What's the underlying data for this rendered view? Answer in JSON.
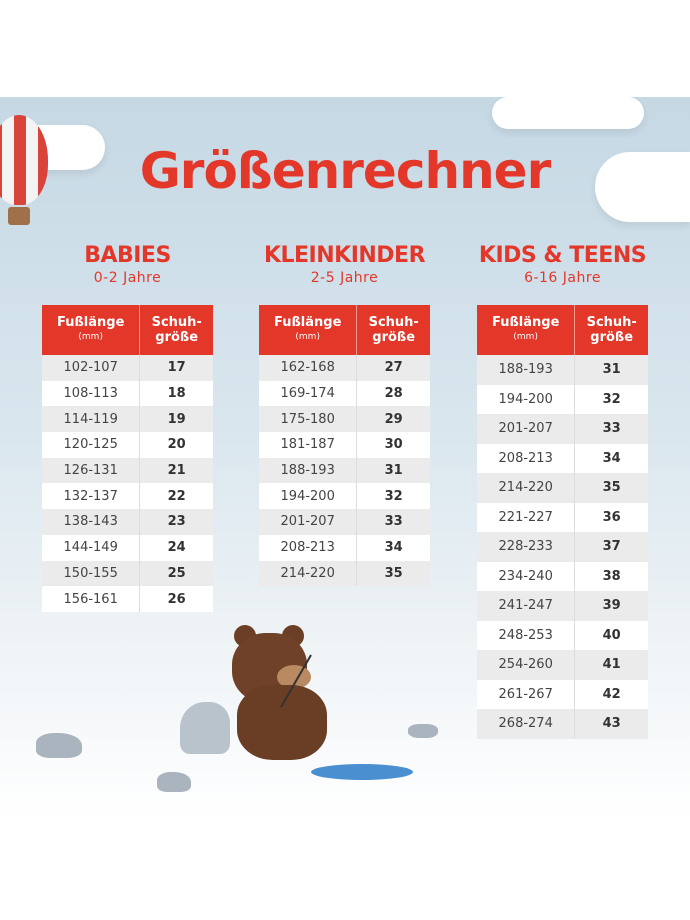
{
  "title": "Größenrechner",
  "colors": {
    "accent": "#e3372a",
    "background": "#c5d8e4"
  },
  "sections": [
    {
      "heading": "BABIES",
      "age": "0-2 Jahre",
      "col1": "Fußlänge",
      "col1_unit": "(mm)",
      "col2": "Schuh-",
      "col2b": "größe",
      "rows": [
        [
          "102-107",
          "17"
        ],
        [
          "108-113",
          "18"
        ],
        [
          "114-119",
          "19"
        ],
        [
          "120-125",
          "20"
        ],
        [
          "126-131",
          "21"
        ],
        [
          "132-137",
          "22"
        ],
        [
          "138-143",
          "23"
        ],
        [
          "144-149",
          "24"
        ],
        [
          "150-155",
          "25"
        ],
        [
          "156-161",
          "26"
        ]
      ]
    },
    {
      "heading": "KLEINKINDER",
      "age": "2-5 Jahre",
      "col1": "Fußlänge",
      "col1_unit": "(mm)",
      "col2": "Schuh-",
      "col2b": "größe",
      "rows": [
        [
          "162-168",
          "27"
        ],
        [
          "169-174",
          "28"
        ],
        [
          "175-180",
          "29"
        ],
        [
          "181-187",
          "30"
        ],
        [
          "188-193",
          "31"
        ],
        [
          "194-200",
          "32"
        ],
        [
          "201-207",
          "33"
        ],
        [
          "208-213",
          "34"
        ],
        [
          "214-220",
          "35"
        ]
      ]
    },
    {
      "heading": "KIDS & TEENS",
      "age": "6-16 Jahre",
      "col1": "Fußlänge",
      "col1_unit": "(mm)",
      "col2": "Schuh-",
      "col2b": "größe",
      "rows": [
        [
          "188-193",
          "31"
        ],
        [
          "194-200",
          "32"
        ],
        [
          "201-207",
          "33"
        ],
        [
          "208-213",
          "34"
        ],
        [
          "214-220",
          "35"
        ],
        [
          "221-227",
          "36"
        ],
        [
          "228-233",
          "37"
        ],
        [
          "234-240",
          "38"
        ],
        [
          "241-247",
          "39"
        ],
        [
          "248-253",
          "40"
        ],
        [
          "254-260",
          "41"
        ],
        [
          "261-267",
          "42"
        ],
        [
          "268-274",
          "43"
        ]
      ]
    }
  ]
}
